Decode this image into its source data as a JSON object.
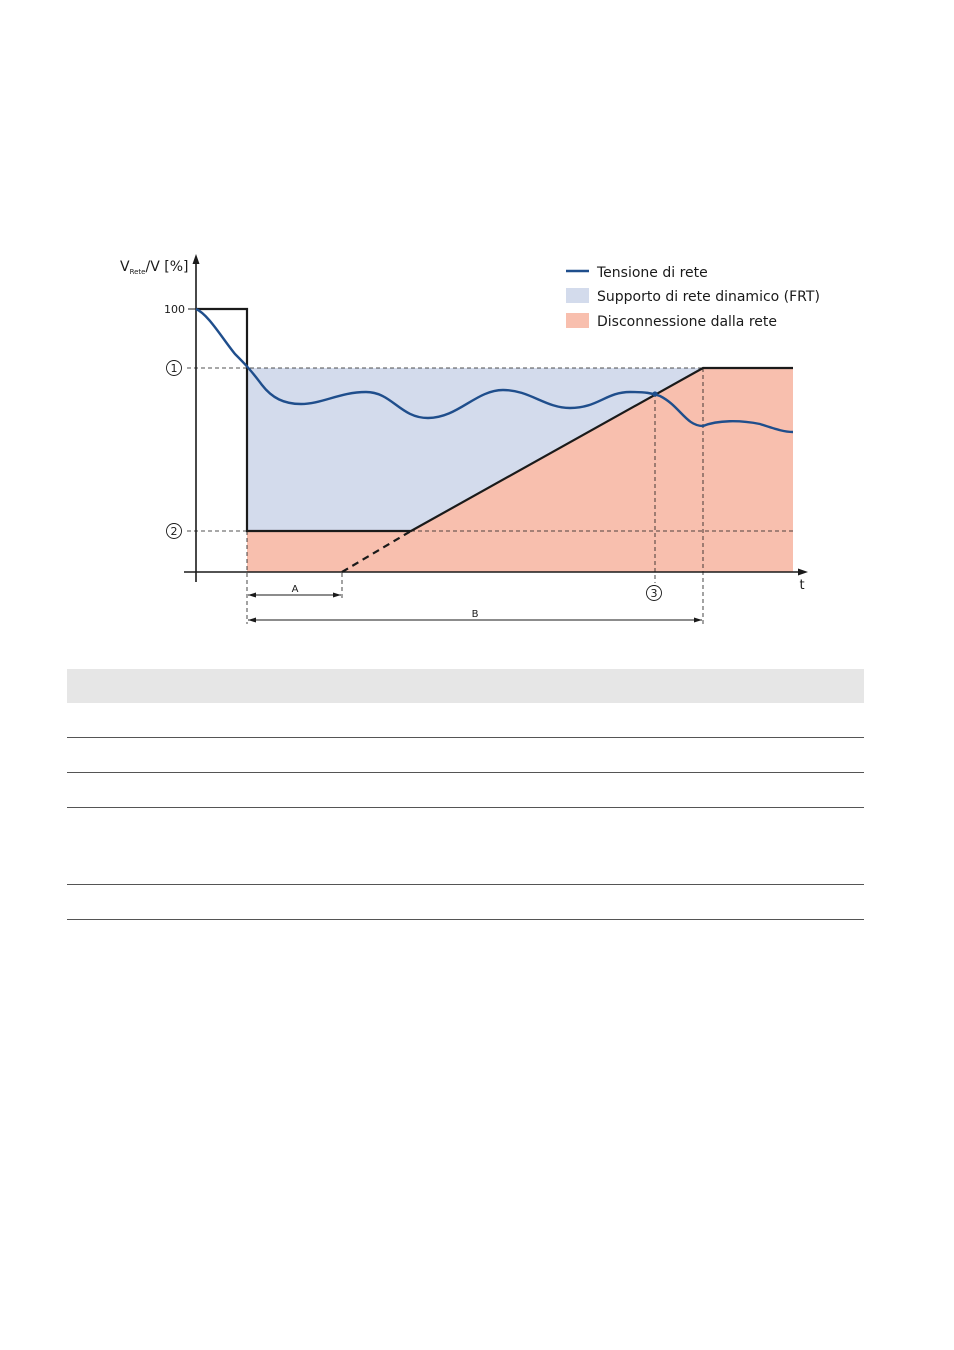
{
  "chart": {
    "y_axis_label_main": "V",
    "y_axis_label_sub": "Rete",
    "y_axis_label_rest": "/V [%]",
    "x_axis_label": "t",
    "y_tick_100": "100",
    "marker_1": "1",
    "marker_2": "2",
    "marker_3": "3",
    "span_a": "A",
    "span_b": "B",
    "legend": {
      "line": "Tensione di rete",
      "blue": "Supporto di rete dinamico (FRT)",
      "red": "Disconnessione dalla rete"
    },
    "colors": {
      "line": "#1f4e8c",
      "blue_area": "#d3dbec",
      "red_area": "#f8bfae",
      "axis": "#1a1a1a"
    }
  },
  "table": {
    "rows": 6
  }
}
